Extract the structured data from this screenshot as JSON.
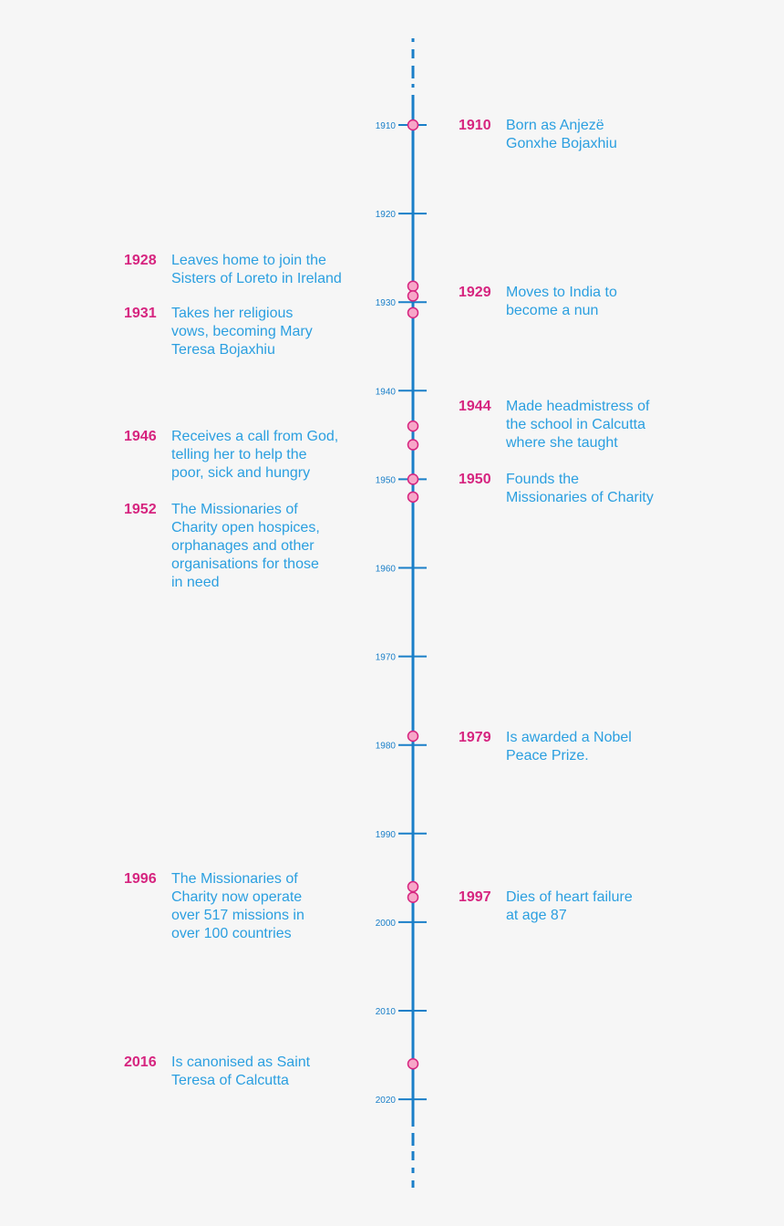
{
  "colors": {
    "axis": "#1a7fc8",
    "year": "#d6247f",
    "text": "#2b9fe0",
    "marker_fill": "#f7a6c8",
    "marker_stroke": "#d6247f",
    "background": "#f6f6f6"
  },
  "axis": {
    "start_year": 1910,
    "end_year": 2020,
    "tick_step": 10,
    "ticks": [
      "1910",
      "1920",
      "1930",
      "1940",
      "1950",
      "1960",
      "1970",
      "1980",
      "1990",
      "2000",
      "2010",
      "2020"
    ]
  },
  "markers": [
    1910,
    1928.2,
    1929.3,
    1931.2,
    1944,
    1946.1,
    1950,
    1952,
    1979,
    1996,
    1997.2,
    2016
  ],
  "events": [
    {
      "year": "1910",
      "side": "right",
      "text": "Born as Anjezë\nGonxhe Bojaxhiu"
    },
    {
      "year": "1928",
      "side": "left",
      "text": "Leaves home to join the\nSisters of Loreto in Ireland"
    },
    {
      "year": "1929",
      "side": "right",
      "text": "Moves to India to\nbecome a nun"
    },
    {
      "year": "1931",
      "side": "left",
      "text": "Takes her religious\nvows, becoming Mary\nTeresa Bojaxhiu"
    },
    {
      "year": "1944",
      "side": "right",
      "text": "Made headmistress of\nthe school in Calcutta\nwhere she taught"
    },
    {
      "year": "1946",
      "side": "left",
      "text": "Receives a call from God,\ntelling her to help the\npoor, sick and hungry"
    },
    {
      "year": "1950",
      "side": "right",
      "text": "Founds the\nMissionaries of Charity"
    },
    {
      "year": "1952",
      "side": "left",
      "text": "The Missionaries of\nCharity open hospices,\norphanages and other\norganisations for those\nin need"
    },
    {
      "year": "1979",
      "side": "right",
      "text": "Is awarded a Nobel\nPeace Prize."
    },
    {
      "year": "1996",
      "side": "left",
      "text": "The Missionaries of\nCharity now operate\nover 517 missions in\nover 100 countries"
    },
    {
      "year": "1997",
      "side": "right",
      "text": "Dies of heart failure\nat age 87"
    },
    {
      "year": "2016",
      "side": "left",
      "text": "Is canonised as Saint\nTeresa of Calcutta"
    }
  ]
}
